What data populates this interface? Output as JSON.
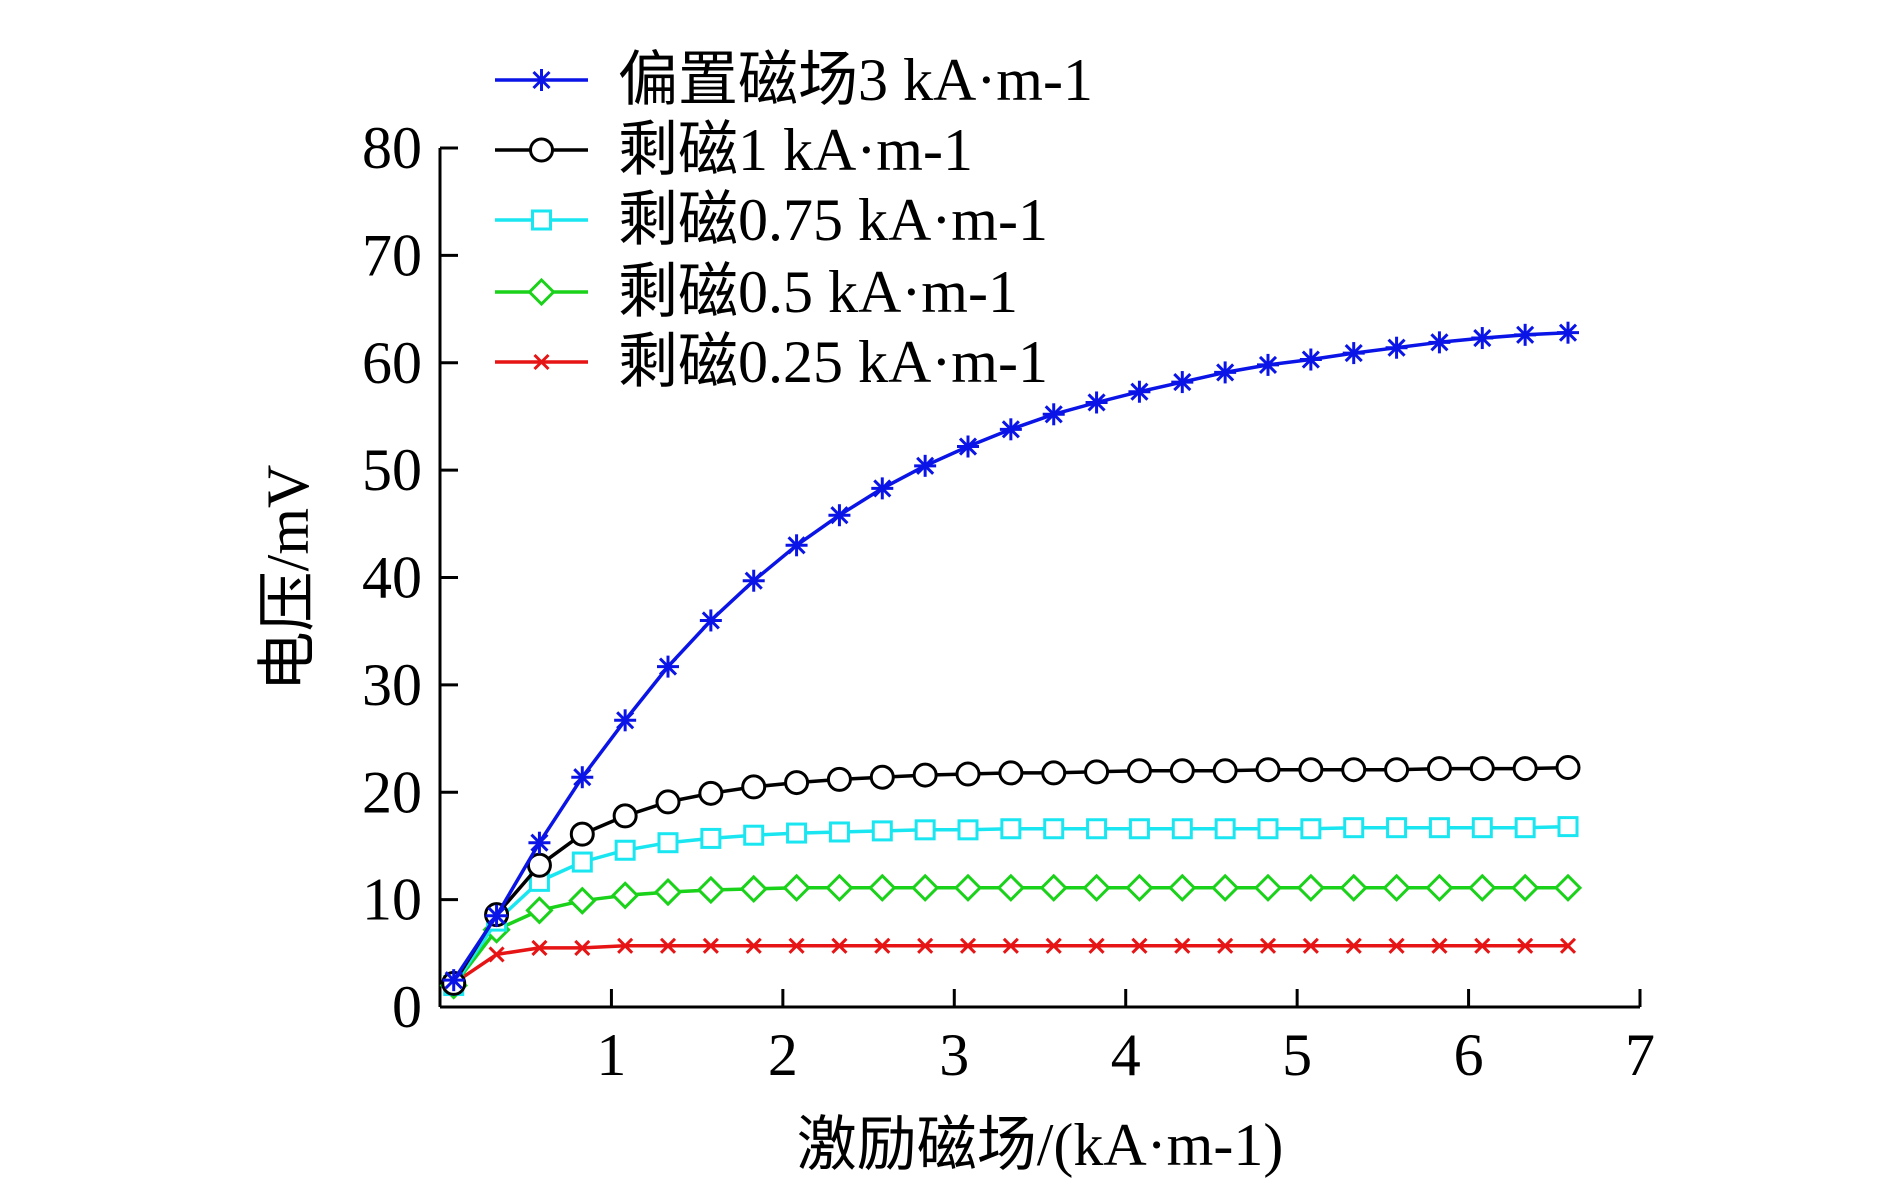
{
  "chart_data": {
    "type": "line",
    "xlabel": "激励磁场/(kA·m-1)",
    "ylabel": "电压/mV",
    "xlim": [
      0,
      7
    ],
    "ylim": [
      0,
      80
    ],
    "xticks": [
      1,
      2,
      3,
      4,
      5,
      6,
      7
    ],
    "yticks": [
      0,
      10,
      20,
      30,
      40,
      50,
      60,
      70,
      80
    ],
    "grid": false,
    "legend_position": "top-left",
    "series": [
      {
        "name": "偏置磁场3 kA·m-1",
        "color": "#0a14e6",
        "marker": "asterisk",
        "x": [
          0.08,
          0.33,
          0.58,
          0.83,
          1.08,
          1.33,
          1.58,
          1.83,
          2.08,
          2.33,
          2.58,
          2.83,
          3.08,
          3.33,
          3.58,
          3.83,
          4.08,
          4.33,
          4.58,
          4.83,
          5.08,
          5.33,
          5.58,
          5.83,
          6.08,
          6.33,
          6.58
        ],
        "values": [
          2.5,
          8.5,
          15.3,
          21.4,
          26.7,
          31.7,
          36.0,
          39.7,
          43.0,
          45.8,
          48.3,
          50.4,
          52.2,
          53.8,
          55.2,
          56.3,
          57.3,
          58.2,
          59.1,
          59.8,
          60.3,
          60.9,
          61.4,
          61.9,
          62.3,
          62.6,
          62.8
        ]
      },
      {
        "name": "剩磁1 kA·m-1",
        "color": "#000000",
        "marker": "circle",
        "x": [
          0.08,
          0.33,
          0.58,
          0.83,
          1.08,
          1.33,
          1.58,
          1.83,
          2.08,
          2.33,
          2.58,
          2.83,
          3.08,
          3.33,
          3.58,
          3.83,
          4.08,
          4.33,
          4.58,
          4.83,
          5.08,
          5.33,
          5.58,
          5.83,
          6.08,
          6.33,
          6.58
        ],
        "values": [
          2.2,
          8.6,
          13.2,
          16.1,
          17.8,
          19.1,
          19.9,
          20.5,
          20.9,
          21.2,
          21.4,
          21.6,
          21.7,
          21.8,
          21.8,
          21.9,
          22.0,
          22.0,
          22.0,
          22.1,
          22.1,
          22.1,
          22.1,
          22.2,
          22.2,
          22.2,
          22.3
        ]
      },
      {
        "name": "剩磁0.75 kA·m-1",
        "color": "#19e6f0",
        "marker": "square",
        "x": [
          0.08,
          0.33,
          0.58,
          0.83,
          1.08,
          1.33,
          1.58,
          1.83,
          2.08,
          2.33,
          2.58,
          2.83,
          3.08,
          3.33,
          3.58,
          3.83,
          4.08,
          4.33,
          4.58,
          4.83,
          5.08,
          5.33,
          5.58,
          5.83,
          6.08,
          6.33,
          6.58
        ],
        "values": [
          2.0,
          8.0,
          11.7,
          13.5,
          14.6,
          15.3,
          15.7,
          16.0,
          16.2,
          16.3,
          16.4,
          16.5,
          16.5,
          16.6,
          16.6,
          16.6,
          16.6,
          16.6,
          16.6,
          16.6,
          16.6,
          16.7,
          16.7,
          16.7,
          16.7,
          16.7,
          16.8
        ]
      },
      {
        "name": "剩磁0.5 kA·m-1",
        "color": "#19d219",
        "marker": "diamond",
        "x": [
          0.08,
          0.33,
          0.58,
          0.83,
          1.08,
          1.33,
          1.58,
          1.83,
          2.08,
          2.33,
          2.58,
          2.83,
          3.08,
          3.33,
          3.58,
          3.83,
          4.08,
          4.33,
          4.58,
          4.83,
          5.08,
          5.33,
          5.58,
          5.83,
          6.08,
          6.33,
          6.58
        ],
        "values": [
          2.0,
          7.2,
          9.0,
          9.9,
          10.4,
          10.7,
          10.9,
          11.0,
          11.1,
          11.1,
          11.1,
          11.1,
          11.1,
          11.1,
          11.1,
          11.1,
          11.1,
          11.1,
          11.1,
          11.1,
          11.1,
          11.1,
          11.1,
          11.1,
          11.1,
          11.1,
          11.1
        ]
      },
      {
        "name": "剩磁0.25 kA·m-1",
        "color": "#e61414",
        "marker": "x",
        "x": [
          0.08,
          0.33,
          0.58,
          0.83,
          1.08,
          1.33,
          1.58,
          1.83,
          2.08,
          2.33,
          2.58,
          2.83,
          3.08,
          3.33,
          3.58,
          3.83,
          4.08,
          4.33,
          4.58,
          4.83,
          5.08,
          5.33,
          5.58,
          5.83,
          6.08,
          6.33,
          6.58
        ],
        "values": [
          2.2,
          4.9,
          5.5,
          5.5,
          5.7,
          5.7,
          5.7,
          5.7,
          5.7,
          5.7,
          5.7,
          5.7,
          5.7,
          5.7,
          5.7,
          5.7,
          5.7,
          5.7,
          5.7,
          5.7,
          5.7,
          5.7,
          5.7,
          5.7,
          5.7,
          5.7,
          5.7
        ]
      }
    ]
  }
}
